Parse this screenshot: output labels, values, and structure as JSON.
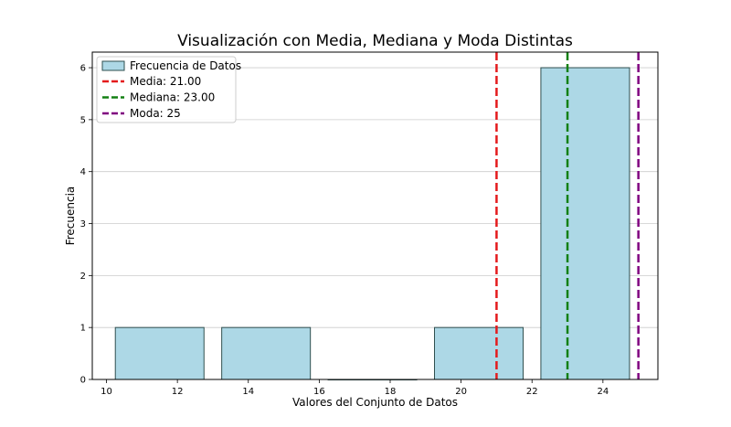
{
  "chart_data": {
    "type": "bar",
    "title": "Visualización con Media, Mediana y Moda Distintas",
    "xlabel": "Valores del Conjunto de Datos",
    "ylabel": "Frecuencia",
    "xlim": [
      9.6,
      25.55
    ],
    "ylim": [
      0,
      6.3
    ],
    "xticks": [
      10,
      12,
      14,
      16,
      18,
      20,
      22,
      24
    ],
    "yticks": [
      0,
      1,
      2,
      3,
      4,
      5,
      6
    ],
    "grid": "horizontal",
    "legend_position": "top-left",
    "bar_color": "#ADD8E6",
    "bar_edge_color": "#000000",
    "series": [
      {
        "name": "Frecuencia de Datos",
        "bins": [
          {
            "start": 10.25,
            "end": 12.75,
            "value": 1
          },
          {
            "start": 13.25,
            "end": 15.75,
            "value": 1
          },
          {
            "start": 16.25,
            "end": 18.75,
            "value": 0
          },
          {
            "start": 19.25,
            "end": 21.75,
            "value": 1
          },
          {
            "start": 22.25,
            "end": 24.75,
            "value": 6
          }
        ]
      }
    ],
    "reference_lines": [
      {
        "name": "Media: 21.00",
        "x": 21.0,
        "color": "#e41a1c"
      },
      {
        "name": "Mediana: 23.00",
        "x": 23.0,
        "color": "#138013"
      },
      {
        "name": "Moda: 25",
        "x": 25.0,
        "color": "#800080"
      }
    ]
  }
}
